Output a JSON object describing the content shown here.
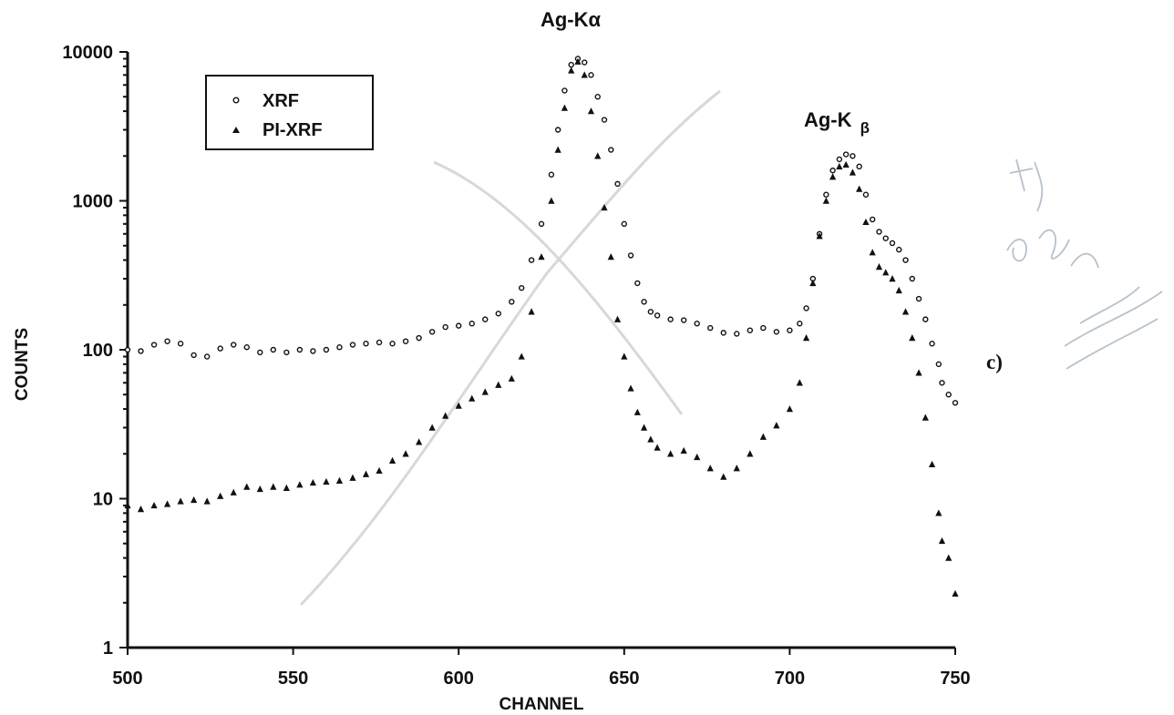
{
  "chart_data": {
    "type": "scatter",
    "title": "",
    "xlabel": "CHANNEL",
    "ylabel": "COUNTS",
    "xlim": [
      500,
      750
    ],
    "ylim": [
      1,
      10000
    ],
    "y_scale": "log",
    "grid": false,
    "legend_position": "top-left",
    "x_ticks": [
      "500",
      "550",
      "600",
      "650",
      "700",
      "750"
    ],
    "y_ticks": [
      "1",
      "10",
      "100",
      "1000",
      "10000"
    ],
    "annotations": [
      "Ag-Kα",
      "Ag-K",
      "β",
      "c)"
    ],
    "series": [
      {
        "name": "XRF",
        "marker": "open-circle",
        "color": "#111111",
        "points": [
          [
            500,
            100
          ],
          [
            504,
            98
          ],
          [
            508,
            108
          ],
          [
            512,
            114
          ],
          [
            516,
            110
          ],
          [
            520,
            92
          ],
          [
            524,
            90
          ],
          [
            528,
            102
          ],
          [
            532,
            108
          ],
          [
            536,
            104
          ],
          [
            540,
            96
          ],
          [
            544,
            100
          ],
          [
            548,
            96
          ],
          [
            552,
            100
          ],
          [
            556,
            98
          ],
          [
            560,
            100
          ],
          [
            564,
            104
          ],
          [
            568,
            108
          ],
          [
            572,
            110
          ],
          [
            576,
            112
          ],
          [
            580,
            110
          ],
          [
            584,
            114
          ],
          [
            588,
            120
          ],
          [
            592,
            132
          ],
          [
            596,
            142
          ],
          [
            600,
            145
          ],
          [
            604,
            150
          ],
          [
            608,
            160
          ],
          [
            612,
            175
          ],
          [
            616,
            210
          ],
          [
            619,
            260
          ],
          [
            622,
            400
          ],
          [
            625,
            700
          ],
          [
            628,
            1500
          ],
          [
            630,
            3000
          ],
          [
            632,
            5500
          ],
          [
            634,
            8200
          ],
          [
            636,
            9000
          ],
          [
            638,
            8500
          ],
          [
            640,
            7000
          ],
          [
            642,
            5000
          ],
          [
            644,
            3500
          ],
          [
            646,
            2200
          ],
          [
            648,
            1300
          ],
          [
            650,
            700
          ],
          [
            652,
            430
          ],
          [
            654,
            280
          ],
          [
            656,
            210
          ],
          [
            658,
            180
          ],
          [
            660,
            170
          ],
          [
            664,
            160
          ],
          [
            668,
            158
          ],
          [
            672,
            150
          ],
          [
            676,
            140
          ],
          [
            680,
            130
          ],
          [
            684,
            128
          ],
          [
            688,
            135
          ],
          [
            692,
            140
          ],
          [
            696,
            132
          ],
          [
            700,
            135
          ],
          [
            703,
            150
          ],
          [
            705,
            190
          ],
          [
            707,
            300
          ],
          [
            709,
            600
          ],
          [
            711,
            1100
          ],
          [
            713,
            1600
          ],
          [
            715,
            1900
          ],
          [
            717,
            2050
          ],
          [
            719,
            2000
          ],
          [
            721,
            1700
          ],
          [
            723,
            1100
          ],
          [
            725,
            750
          ],
          [
            727,
            620
          ],
          [
            729,
            560
          ],
          [
            731,
            520
          ],
          [
            733,
            470
          ],
          [
            735,
            400
          ],
          [
            737,
            300
          ],
          [
            739,
            220
          ],
          [
            741,
            160
          ],
          [
            743,
            110
          ],
          [
            745,
            80
          ],
          [
            746,
            60
          ],
          [
            748,
            50
          ],
          [
            750,
            44
          ]
        ]
      },
      {
        "name": "PI-XRF",
        "marker": "filled-triangle",
        "color": "#111111",
        "points": [
          [
            500,
            9
          ],
          [
            504,
            8.5
          ],
          [
            508,
            9
          ],
          [
            512,
            9.2
          ],
          [
            516,
            9.6
          ],
          [
            520,
            9.8
          ],
          [
            524,
            9.6
          ],
          [
            528,
            10.4
          ],
          [
            532,
            11
          ],
          [
            536,
            12
          ],
          [
            540,
            11.6
          ],
          [
            544,
            12
          ],
          [
            548,
            11.8
          ],
          [
            552,
            12.4
          ],
          [
            556,
            12.8
          ],
          [
            560,
            13
          ],
          [
            564,
            13.2
          ],
          [
            568,
            13.8
          ],
          [
            572,
            14.6
          ],
          [
            576,
            15.4
          ],
          [
            580,
            18
          ],
          [
            584,
            20
          ],
          [
            588,
            24
          ],
          [
            592,
            30
          ],
          [
            596,
            36
          ],
          [
            600,
            42
          ],
          [
            604,
            47
          ],
          [
            608,
            52
          ],
          [
            612,
            58
          ],
          [
            616,
            64
          ],
          [
            619,
            90
          ],
          [
            622,
            180
          ],
          [
            625,
            420
          ],
          [
            628,
            1000
          ],
          [
            630,
            2200
          ],
          [
            632,
            4200
          ],
          [
            634,
            7500
          ],
          [
            636,
            8600
          ],
          [
            638,
            7000
          ],
          [
            640,
            4000
          ],
          [
            642,
            2000
          ],
          [
            644,
            900
          ],
          [
            646,
            420
          ],
          [
            648,
            160
          ],
          [
            650,
            90
          ],
          [
            652,
            55
          ],
          [
            654,
            38
          ],
          [
            656,
            30
          ],
          [
            658,
            25
          ],
          [
            660,
            22
          ],
          [
            664,
            20
          ],
          [
            668,
            21
          ],
          [
            672,
            19
          ],
          [
            676,
            16
          ],
          [
            680,
            14
          ],
          [
            684,
            16
          ],
          [
            688,
            20
          ],
          [
            692,
            26
          ],
          [
            696,
            31
          ],
          [
            700,
            40
          ],
          [
            703,
            60
          ],
          [
            705,
            120
          ],
          [
            707,
            280
          ],
          [
            709,
            580
          ],
          [
            711,
            1000
          ],
          [
            713,
            1450
          ],
          [
            715,
            1700
          ],
          [
            717,
            1750
          ],
          [
            719,
            1550
          ],
          [
            721,
            1200
          ],
          [
            723,
            720
          ],
          [
            725,
            450
          ],
          [
            727,
            360
          ],
          [
            729,
            330
          ],
          [
            731,
            300
          ],
          [
            733,
            250
          ],
          [
            735,
            180
          ],
          [
            737,
            120
          ],
          [
            739,
            70
          ],
          [
            741,
            35
          ],
          [
            743,
            17
          ],
          [
            745,
            8
          ],
          [
            746,
            5.2
          ],
          [
            748,
            4
          ],
          [
            750,
            2.3
          ]
        ]
      }
    ]
  }
}
